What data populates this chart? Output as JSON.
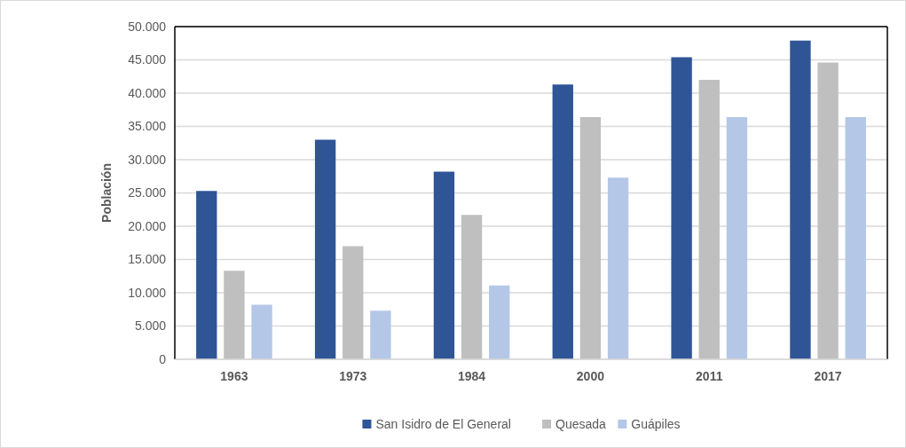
{
  "chart_data": {
    "type": "bar",
    "ylabel": "Población",
    "categories": [
      "1963",
      "1973",
      "1984",
      "2000",
      "2011",
      "2017"
    ],
    "series": [
      {
        "name": "San Isidro de El General",
        "color": "#2f5597",
        "values": [
          25300,
          33000,
          28200,
          41300,
          45400,
          47900
        ]
      },
      {
        "name": "Quesada",
        "color": "#bfbfbf",
        "values": [
          13300,
          17000,
          21700,
          36400,
          42000,
          44600
        ]
      },
      {
        "name": "Guápiles",
        "color": "#b4c7e7",
        "values": [
          8200,
          7300,
          11100,
          27300,
          36400,
          36400
        ]
      }
    ],
    "ylim": [
      0,
      50000
    ],
    "yticks": [
      {
        "value": 0,
        "label": "0"
      },
      {
        "value": 5000,
        "label": "5.000"
      },
      {
        "value": 10000,
        "label": "10.000"
      },
      {
        "value": 15000,
        "label": "15.000"
      },
      {
        "value": 20000,
        "label": "20.000"
      },
      {
        "value": 25000,
        "label": "25.000"
      },
      {
        "value": 30000,
        "label": "30.000"
      },
      {
        "value": 35000,
        "label": "35.000"
      },
      {
        "value": 40000,
        "label": "40.000"
      },
      {
        "value": 45000,
        "label": "45.000"
      },
      {
        "value": 50000,
        "label": "50.000"
      }
    ],
    "grid": "y",
    "legend": "bottom"
  }
}
